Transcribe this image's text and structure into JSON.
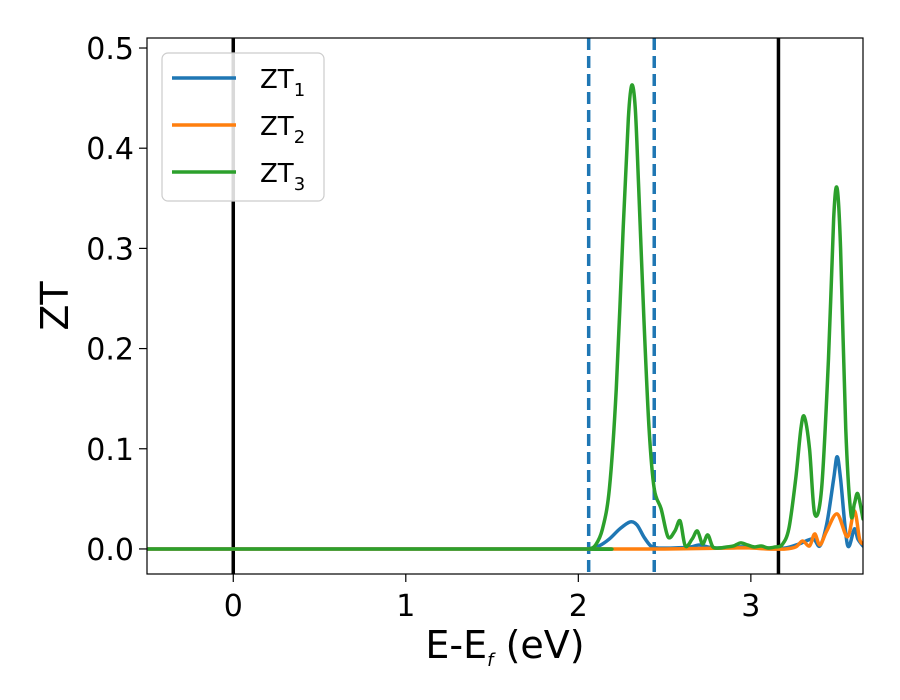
{
  "chart_data": {
    "type": "line",
    "title": "",
    "xlabel": {
      "main": "E-E",
      "sub": "f",
      "suffix": " (eV)"
    },
    "ylabel": "ZT",
    "xlim": [
      -0.5,
      3.65
    ],
    "ylim": [
      -0.025,
      0.51
    ],
    "xticks": [
      0,
      1,
      2,
      3
    ],
    "xtick_labels": [
      "0",
      "1",
      "2",
      "3"
    ],
    "yticks": [
      0.0,
      0.1,
      0.2,
      0.3,
      0.4,
      0.5
    ],
    "ytick_labels": [
      "0.0",
      "0.1",
      "0.2",
      "0.3",
      "0.4",
      "0.5"
    ],
    "grid": false,
    "legend_position": "top-left",
    "vertical_lines": [
      {
        "x": 0.0,
        "style": "solid",
        "color": "#000000"
      },
      {
        "x": 3.16,
        "style": "solid",
        "color": "#000000"
      },
      {
        "x": 2.06,
        "style": "dashed",
        "color": "#1f77b4"
      },
      {
        "x": 2.44,
        "style": "dashed",
        "color": "#1f77b4"
      }
    ],
    "series": [
      {
        "name": {
          "main": "ZT",
          "sub": "1"
        },
        "color": "#1f77b4",
        "x": [
          -0.5,
          2.0,
          2.06,
          2.12,
          2.18,
          2.24,
          2.3,
          2.34,
          2.38,
          2.42,
          2.46,
          2.55,
          2.65,
          2.7,
          2.75,
          2.8,
          2.9,
          3.0,
          3.1,
          3.2,
          3.28,
          3.36,
          3.4,
          3.44,
          3.48,
          3.5,
          3.52,
          3.56,
          3.6,
          3.62,
          3.65
        ],
        "y": [
          0.0,
          0.0,
          0.0,
          0.003,
          0.01,
          0.02,
          0.027,
          0.024,
          0.012,
          0.003,
          0.001,
          0.001,
          0.002,
          0.004,
          0.002,
          0.001,
          0.002,
          0.002,
          0.001,
          0.001,
          0.005,
          0.01,
          0.003,
          0.025,
          0.07,
          0.092,
          0.07,
          0.004,
          0.02,
          0.01,
          0.003
        ]
      },
      {
        "name": {
          "main": "ZT",
          "sub": "2"
        },
        "color": "#ff7f0e",
        "x": [
          -0.5,
          2.0,
          2.5,
          2.9,
          3.0,
          3.1,
          3.2,
          3.26,
          3.3,
          3.34,
          3.37,
          3.4,
          3.44,
          3.5,
          3.56,
          3.6,
          3.63,
          3.65
        ],
        "y": [
          0.0,
          0.0,
          0.0,
          0.001,
          0.001,
          0.0,
          0.0,
          0.002,
          0.008,
          0.003,
          0.015,
          0.004,
          0.018,
          0.035,
          0.012,
          0.038,
          0.01,
          0.005
        ]
      },
      {
        "name": {
          "main": "ZT",
          "sub": "3"
        },
        "color": "#2ca02c",
        "x": [
          -0.5,
          2.0,
          2.06,
          2.1,
          2.14,
          2.18,
          2.22,
          2.26,
          2.29,
          2.31,
          2.33,
          2.35,
          2.38,
          2.41,
          2.44,
          2.48,
          2.52,
          2.56,
          2.59,
          2.62,
          2.66,
          2.69,
          2.72,
          2.75,
          2.78,
          2.82,
          2.86,
          2.9,
          2.94,
          2.98,
          3.02,
          3.06,
          3.1,
          3.14,
          3.18,
          3.22,
          3.26,
          3.29,
          3.31,
          3.34,
          3.37,
          3.41,
          3.45,
          3.48,
          3.5,
          3.52,
          3.55,
          3.58,
          3.6,
          3.62,
          3.65
        ],
        "y": [
          0.0,
          0.0,
          0.0,
          0.004,
          0.02,
          0.06,
          0.16,
          0.32,
          0.43,
          0.463,
          0.44,
          0.36,
          0.23,
          0.12,
          0.06,
          0.04,
          0.012,
          0.018,
          0.028,
          0.003,
          0.01,
          0.018,
          0.005,
          0.014,
          0.002,
          0.001,
          0.002,
          0.003,
          0.006,
          0.004,
          0.002,
          0.003,
          0.001,
          0.002,
          0.004,
          0.02,
          0.07,
          0.12,
          0.132,
          0.1,
          0.035,
          0.06,
          0.19,
          0.33,
          0.36,
          0.3,
          0.12,
          0.035,
          0.045,
          0.055,
          0.03
        ]
      }
    ]
  }
}
